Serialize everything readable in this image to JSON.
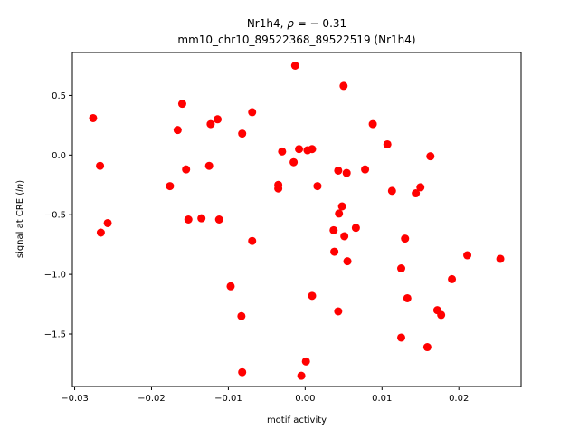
{
  "chart_data": {
    "type": "scatter",
    "title_line1": "Nr1h4, ",
    "title_rho_symbol": "ρ",
    "title_rho_value": " = − 0.31",
    "title_line2": "mm10_chr10_89522368_89522519 (Nr1h4)",
    "xlabel": "motif activity",
    "ylabel_prefix": "signal at CRE (",
    "ylabel_italic": "ln",
    "ylabel_suffix": ")",
    "xlim": [
      -0.0303,
      0.0281
    ],
    "ylim": [
      -1.94,
      0.86
    ],
    "xticks": [
      {
        "value": -0.03,
        "label": "−0.03"
      },
      {
        "value": -0.02,
        "label": "−0.02"
      },
      {
        "value": -0.01,
        "label": "−0.01"
      },
      {
        "value": 0.0,
        "label": "0.00"
      },
      {
        "value": 0.01,
        "label": "0.01"
      },
      {
        "value": 0.02,
        "label": "0.02"
      }
    ],
    "yticks": [
      {
        "value": 0.5,
        "label": "0.5"
      },
      {
        "value": 0.0,
        "label": "0.0"
      },
      {
        "value": -0.5,
        "label": "−0.5"
      },
      {
        "value": -1.0,
        "label": "−1.0"
      },
      {
        "value": -1.5,
        "label": "−1.5"
      }
    ],
    "grid": false,
    "marker_color": "#ff0000",
    "points": [
      {
        "x": -0.0276,
        "y": 0.31
      },
      {
        "x": -0.0267,
        "y": -0.09
      },
      {
        "x": -0.0266,
        "y": -0.65
      },
      {
        "x": -0.0257,
        "y": -0.57
      },
      {
        "x": -0.0176,
        "y": -0.26
      },
      {
        "x": -0.0166,
        "y": 0.21
      },
      {
        "x": -0.016,
        "y": 0.43
      },
      {
        "x": -0.0155,
        "y": -0.12
      },
      {
        "x": -0.0152,
        "y": -0.54
      },
      {
        "x": -0.0135,
        "y": -0.53
      },
      {
        "x": -0.0125,
        "y": -0.09
      },
      {
        "x": -0.0123,
        "y": 0.26
      },
      {
        "x": -0.0114,
        "y": 0.3
      },
      {
        "x": -0.0112,
        "y": -0.54
      },
      {
        "x": -0.0097,
        "y": -1.1
      },
      {
        "x": -0.0083,
        "y": -1.35
      },
      {
        "x": -0.0082,
        "y": 0.18
      },
      {
        "x": -0.0082,
        "y": -1.82
      },
      {
        "x": -0.0069,
        "y": 0.36
      },
      {
        "x": -0.0069,
        "y": -0.72
      },
      {
        "x": -0.0035,
        "y": -0.25
      },
      {
        "x": -0.0035,
        "y": -0.28
      },
      {
        "x": -0.003,
        "y": 0.03
      },
      {
        "x": -0.0015,
        "y": -0.06
      },
      {
        "x": -0.0013,
        "y": 0.75
      },
      {
        "x": -0.0008,
        "y": 0.05
      },
      {
        "x": -0.0005,
        "y": -1.85
      },
      {
        "x": 0.0001,
        "y": -1.73
      },
      {
        "x": 0.0003,
        "y": 0.04
      },
      {
        "x": 0.0009,
        "y": 0.05
      },
      {
        "x": 0.0009,
        "y": -1.18
      },
      {
        "x": 0.0016,
        "y": -0.26
      },
      {
        "x": 0.0037,
        "y": -0.63
      },
      {
        "x": 0.0038,
        "y": -0.81
      },
      {
        "x": 0.0043,
        "y": -0.13
      },
      {
        "x": 0.0043,
        "y": -1.31
      },
      {
        "x": 0.0044,
        "y": -0.49
      },
      {
        "x": 0.0048,
        "y": -0.43
      },
      {
        "x": 0.005,
        "y": 0.58
      },
      {
        "x": 0.0051,
        "y": -0.68
      },
      {
        "x": 0.0054,
        "y": -0.15
      },
      {
        "x": 0.0055,
        "y": -0.89
      },
      {
        "x": 0.0066,
        "y": -0.61
      },
      {
        "x": 0.0078,
        "y": -0.12
      },
      {
        "x": 0.0088,
        "y": 0.26
      },
      {
        "x": 0.0107,
        "y": 0.09
      },
      {
        "x": 0.0113,
        "y": -0.3
      },
      {
        "x": 0.0125,
        "y": -0.95
      },
      {
        "x": 0.0125,
        "y": -1.53
      },
      {
        "x": 0.013,
        "y": -0.7
      },
      {
        "x": 0.0133,
        "y": -1.2
      },
      {
        "x": 0.0144,
        "y": -0.32
      },
      {
        "x": 0.015,
        "y": -0.27
      },
      {
        "x": 0.0159,
        "y": -1.61
      },
      {
        "x": 0.0163,
        "y": -0.01
      },
      {
        "x": 0.0172,
        "y": -1.3
      },
      {
        "x": 0.0177,
        "y": -1.34
      },
      {
        "x": 0.0191,
        "y": -1.04
      },
      {
        "x": 0.0211,
        "y": -0.84
      },
      {
        "x": 0.0254,
        "y": -0.87
      }
    ]
  }
}
